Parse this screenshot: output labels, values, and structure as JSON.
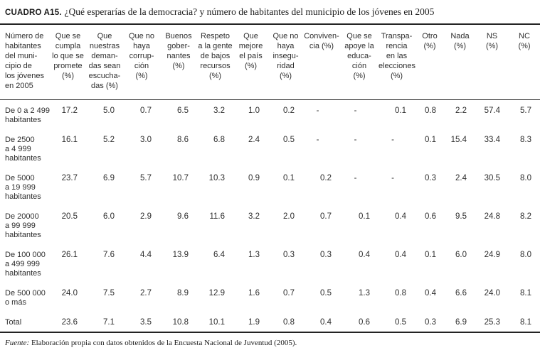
{
  "title": {
    "label": "CUADRO A15.",
    "text": "¿Qué esperarías de la democracia? y número de habitantes del municipio de los jóvenes en 2005"
  },
  "table": {
    "columns": [
      "Número de\nhabitantes\ndel muni-\ncipio de\nlos jóvenes\nen 2005",
      "Que se\ncumpla\nlo que se\npromete\n(%)",
      "Que\nnuestras\ndeman-\ndas sean\nescucha-\ndas (%)",
      "Que no\nhaya\ncorrup-\nción\n(%)",
      "Buenos\ngober-\nnantes\n(%)",
      "Respeto\na la gente\nde bajos\nrecursos\n(%)",
      "Que\nmejore\nel país\n(%)",
      "Que no\nhaya\ninsegu-\nridad\n(%)",
      "Conviven-\ncia (%)",
      "Que se\napoye la\neduca-\nción\n(%)",
      "Transpa-\nrencia\nen las\nelecciones\n(%)",
      "Otro\n(%)",
      "Nada\n(%)",
      "NS\n(%)",
      "NC\n(%)"
    ],
    "rows": [
      {
        "label": "De 0 a 2 499\nhabitantes",
        "values": [
          "17.2",
          "5.0",
          "0.7",
          "6.5",
          "3.2",
          "1.0",
          "0.2",
          "-",
          "-",
          "0.1",
          "0.8",
          "2.2",
          "57.4",
          "5.7"
        ]
      },
      {
        "label": "De 2500\na 4 999\nhabitantes",
        "values": [
          "16.1",
          "5.2",
          "3.0",
          "8.6",
          "6.8",
          "2.4",
          "0.5",
          "-",
          "-",
          "-",
          "0.1",
          "15.4",
          "33.4",
          "8.3"
        ]
      },
      {
        "label": "De 5000\na 19 999\nhabitantes",
        "values": [
          "23.7",
          "6.9",
          "5.7",
          "10.7",
          "10.3",
          "0.9",
          "0.1",
          "0.2",
          "-",
          "-",
          "0.3",
          "2.4",
          "30.5",
          "8.0"
        ]
      },
      {
        "label": "De 20000\na 99 999\nhabitantes",
        "values": [
          "20.5",
          "6.0",
          "2.9",
          "9.6",
          "11.6",
          "3.2",
          "2.0",
          "0.7",
          "0.1",
          "0.4",
          "0.6",
          "9.5",
          "24.8",
          "8.2"
        ]
      },
      {
        "label": "De 100 000\na 499 999\nhabitantes",
        "values": [
          "26.1",
          "7.6",
          "4.4",
          "13.9",
          "6.4",
          "1.3",
          "0.3",
          "0.3",
          "0.4",
          "0.4",
          "0.1",
          "6.0",
          "24.9",
          "8.0"
        ]
      },
      {
        "label": "De 500 000\no más",
        "values": [
          "24.0",
          "7.5",
          "2.7",
          "8.9",
          "12.9",
          "1.6",
          "0.7",
          "0.5",
          "1.3",
          "0.8",
          "0.4",
          "6.6",
          "24.0",
          "8.1"
        ]
      },
      {
        "label": "Total",
        "values": [
          "23.6",
          "7.1",
          "3.5",
          "10.8",
          "10.1",
          "1.9",
          "0.8",
          "0.4",
          "0.6",
          "0.5",
          "0.3",
          "6.9",
          "25.3",
          "8.1"
        ]
      }
    ]
  },
  "source": {
    "label": "Fuente:",
    "text": " Elaboración propia con datos obtenidos de la Encuesta Nacional de Juventud (2005)."
  }
}
